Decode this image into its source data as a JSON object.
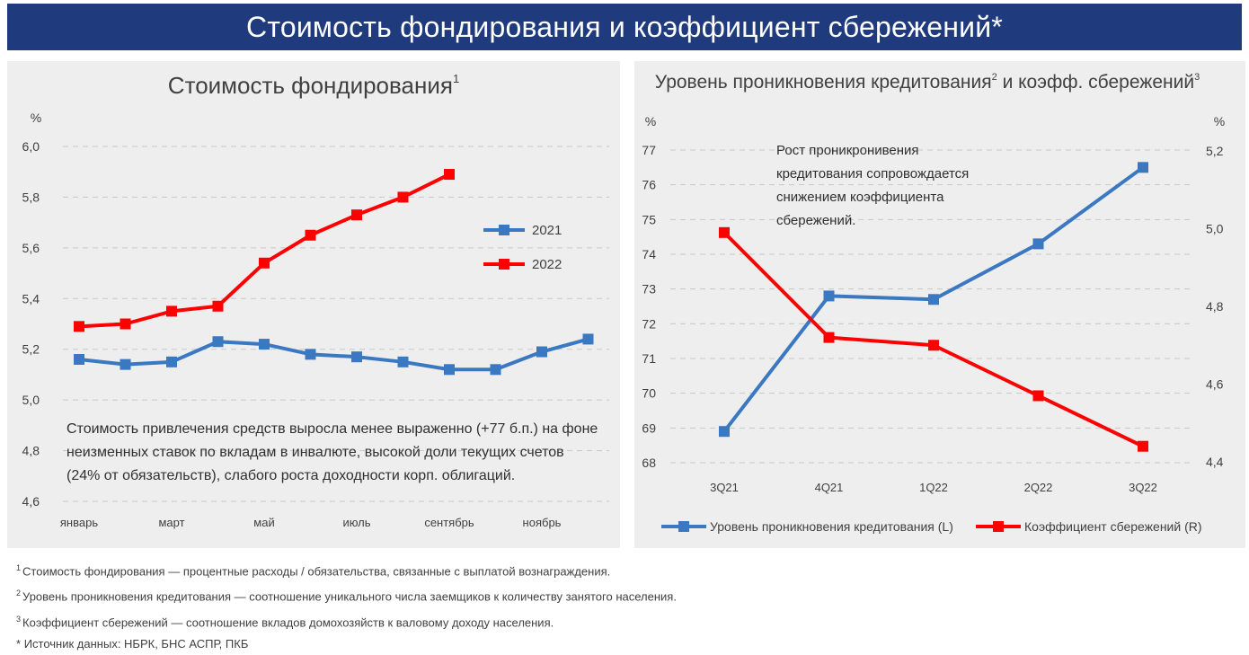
{
  "banner_title": "Стоимость фондирования и коэффициент сбережений*",
  "chart_data": [
    {
      "type": "line",
      "title": "Стоимость фондирования",
      "title_sup": "1",
      "ylabel": "%",
      "ylim": [
        4.6,
        6.0
      ],
      "yticks": [
        "6,0",
        "5,8",
        "5,6",
        "5,4",
        "5,2",
        "5,0",
        "4,8",
        "4,6"
      ],
      "ytick_values": [
        6.0,
        5.8,
        5.6,
        5.4,
        5.2,
        5.0,
        4.8,
        4.6
      ],
      "xtick_labels": [
        "январь",
        "",
        "март",
        "",
        "май",
        "",
        "июль",
        "",
        "сентябрь",
        "",
        "ноябрь",
        ""
      ],
      "series": [
        {
          "name": "2021",
          "color": "#3a78c2",
          "values": [
            5.16,
            5.14,
            5.15,
            5.23,
            5.22,
            5.18,
            5.17,
            5.15,
            5.12,
            5.12,
            5.19,
            5.24
          ]
        },
        {
          "name": "2022",
          "color": "#ff0000",
          "values": [
            5.29,
            5.3,
            5.35,
            5.37,
            5.54,
            5.65,
            5.73,
            5.8,
            5.89
          ]
        }
      ],
      "legend": "middle-right",
      "annotation": [
        "Стоимость привлечения средств выросла менее выраженно (+77 б.п.) на фоне",
        "неизменных ставок по вкладам в инвалюте, высокой доли текущих счетов",
        "(24% от обязательств), слабого роста доходности корп. облигаций."
      ]
    },
    {
      "type": "line",
      "title": "Уровень проникновения кредитования",
      "title_sup1": "2",
      "title_mid": " и коэфф. сбережений",
      "title_sup2": "3",
      "ylabel_left": "%",
      "ylabel_right": "%",
      "ylim_left": [
        68,
        77
      ],
      "ylim_right": [
        4.4,
        5.2
      ],
      "yticks_left": [
        "77",
        "76",
        "75",
        "74",
        "73",
        "72",
        "71",
        "70",
        "69",
        "68"
      ],
      "ytick_values_left": [
        77,
        76,
        75,
        74,
        73,
        72,
        71,
        70,
        69,
        68
      ],
      "yticks_right": [
        "5,2",
        "5,0",
        "4,8",
        "4,6",
        "4,4"
      ],
      "ytick_values_right": [
        5.2,
        5.0,
        4.8,
        4.6,
        4.4
      ],
      "categories": [
        "3Q21",
        "4Q21",
        "1Q22",
        "2Q22",
        "3Q22"
      ],
      "series": [
        {
          "name": "Уровень проникновения кредитования (L)",
          "axis": "left",
          "color": "#3a78c2",
          "values": [
            68.9,
            72.8,
            72.7,
            74.3,
            76.5
          ]
        },
        {
          "name": "Коэффициент сбережений (R)",
          "axis": "right",
          "color": "#ff0000",
          "values": [
            4.99,
            4.72,
            4.7,
            4.57,
            4.44
          ]
        }
      ],
      "legend": "bottom",
      "annotation": [
        "Рост проникронивения",
        "кредитования  сопровождается",
        "снижением коэффициента",
        "сбережений."
      ]
    }
  ],
  "footnotes": [
    {
      "num": "1",
      "text": "Стоимость фондирования — процентные расходы / обязательства, связанные с выплатой вознаграждения."
    },
    {
      "num": "2",
      "text": "Уровень проникновения кредитования — соотношение уникального числа заемщиков к количеству занятого населения."
    },
    {
      "num": "3",
      "text": "Коэффициент сбережений — соотношение вкладов домохозяйств к валовому доходу населения."
    },
    {
      "num": "*",
      "text": "Источник данных: НБРК, БНС АСПР, ПКБ"
    }
  ],
  "colors": {
    "banner": "#1f3b7d",
    "series_blue": "#3a78c2",
    "series_red": "#ff0000",
    "panel_bg": "#eeeeee"
  }
}
